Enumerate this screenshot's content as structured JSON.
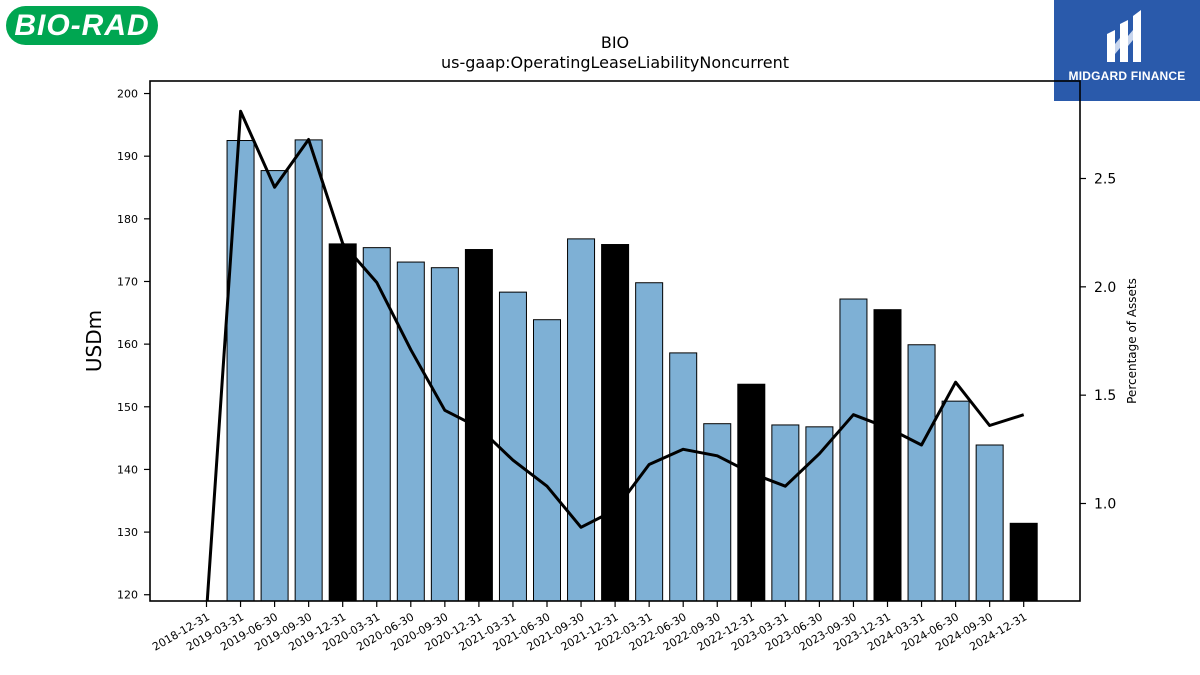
{
  "logos": {
    "left_text": "BIO-RAD",
    "right_text": "MIDGARD FINANCE"
  },
  "colors": {
    "bar_default": "#7eb0d5",
    "bar_highlight": "#000000",
    "line": "#000000",
    "logo_left_bg": "#00a651",
    "logo_right_bg": "#2a5aab"
  },
  "chart_data": {
    "type": "bar",
    "title": "BIO",
    "subtitle": "us-gaap:OperatingLeaseLiabilityNoncurrent",
    "ylabel": "USDm",
    "y2label": "Percentage of Assets",
    "ylim": [
      119,
      202
    ],
    "y2lim": [
      0.55,
      2.95
    ],
    "yticks": [
      120,
      130,
      140,
      150,
      160,
      170,
      180,
      190,
      200
    ],
    "y2ticks": [
      1.0,
      1.5,
      2.0,
      2.5
    ],
    "y2tick_labels": [
      "1.0",
      "1.5",
      "2.0",
      "2.5"
    ],
    "categories": [
      "2018-12-31",
      "2019-03-31",
      "2019-06-30",
      "2019-09-30",
      "2019-12-31",
      "2020-03-31",
      "2020-06-30",
      "2020-09-30",
      "2020-12-31",
      "2021-03-31",
      "2021-06-30",
      "2021-09-30",
      "2021-12-31",
      "2022-03-31",
      "2022-06-30",
      "2022-09-30",
      "2022-12-31",
      "2023-03-31",
      "2023-06-30",
      "2023-09-30",
      "2023-12-31",
      "2024-03-31",
      "2024-06-30",
      "2024-09-30",
      "2024-12-31"
    ],
    "series": [
      {
        "type": "bar",
        "axis": "left",
        "values": [
          null,
          192.5,
          187.7,
          192.6,
          176.0,
          175.4,
          173.1,
          172.2,
          175.1,
          168.3,
          163.9,
          176.8,
          175.9,
          169.8,
          158.6,
          147.3,
          153.6,
          147.1,
          146.8,
          167.2,
          165.5,
          159.9,
          150.9,
          143.9,
          131.4
        ],
        "highlight": [
          false,
          false,
          false,
          false,
          true,
          false,
          false,
          false,
          true,
          false,
          false,
          false,
          true,
          false,
          false,
          false,
          true,
          false,
          false,
          false,
          true,
          false,
          false,
          false,
          true
        ]
      },
      {
        "type": "line",
        "axis": "right",
        "values": [
          0.5,
          2.81,
          2.46,
          2.68,
          2.2,
          2.02,
          1.71,
          1.43,
          1.35,
          1.2,
          1.08,
          0.89,
          0.97,
          1.18,
          1.25,
          1.22,
          1.14,
          1.08,
          1.23,
          1.41,
          1.35,
          1.27,
          1.56,
          1.36,
          1.41
        ]
      }
    ],
    "grid": false,
    "legend": "none"
  }
}
